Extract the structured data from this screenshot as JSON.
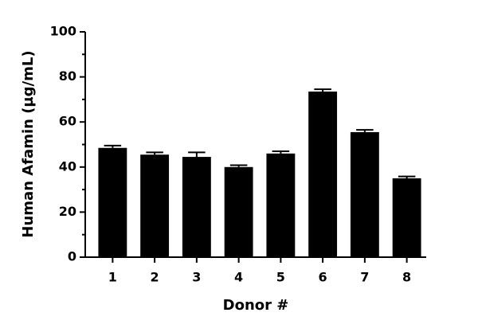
{
  "chart_data": {
    "type": "bar",
    "x_label": "Donor #",
    "y_label": "Human Afamin (µg/mL)",
    "categories": [
      "1",
      "2",
      "3",
      "4",
      "5",
      "6",
      "7",
      "8"
    ],
    "values": [
      48.5,
      45.5,
      44.5,
      40,
      46,
      73.5,
      55.5,
      35
    ],
    "errors": [
      1,
      1,
      2,
      0.8,
      1,
      1,
      1,
      0.8
    ],
    "color": "#000000",
    "ylim": [
      0,
      100
    ],
    "yticks": [
      0,
      20,
      40,
      60,
      80,
      100
    ],
    "yticks_minor": [
      10,
      30,
      50,
      70,
      90
    ],
    "grid": false
  }
}
